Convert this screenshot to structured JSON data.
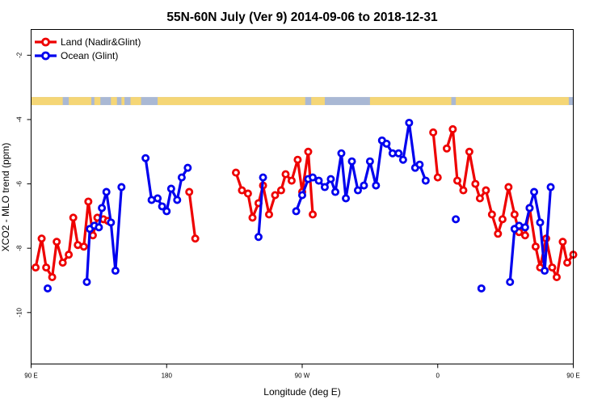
{
  "chart_data": {
    "type": "line",
    "title": "55N-60N July (Ver 9)   2014-09-06 to 2018-12-31",
    "xlabel": "Longitude (deg E)",
    "ylabel": "XCO2 - MLO trend (ppm)",
    "xlim": [
      90,
      450
    ],
    "ylim": [
      -11.6,
      -1.2
    ],
    "x_ticks": [
      {
        "value": 90,
        "label": "90 E"
      },
      {
        "value": 180,
        "label": "180"
      },
      {
        "value": 270,
        "label": "90 W"
      },
      {
        "value": 360,
        "label": "0"
      },
      {
        "value": 450,
        "label": "90 E"
      },
      {
        "value": 540,
        "label": "180"
      }
    ],
    "y_ticks": [
      {
        "value": -2,
        "label": "-2"
      },
      {
        "value": -4,
        "label": "-4"
      },
      {
        "value": -6,
        "label": "-6"
      },
      {
        "value": -8,
        "label": "-8"
      },
      {
        "value": -10,
        "label": "-10"
      }
    ],
    "legend_position": "top-left",
    "land_mask": {
      "y_range": [
        -3.55,
        -3.3
      ],
      "ocean_color": "#a9b8d4",
      "land_color": "#f5d676",
      "land_segments": [
        [
          90,
          111
        ],
        [
          115,
          130
        ],
        [
          132,
          136
        ],
        [
          143,
          147
        ],
        [
          150,
          152
        ],
        [
          156,
          163
        ],
        [
          174,
          272
        ],
        [
          276,
          285
        ],
        [
          315,
          369
        ],
        [
          372,
          447
        ]
      ]
    },
    "series": [
      {
        "name": "Land (Nadir&Glint)",
        "color": "#ee0000",
        "segments": [
          [
            [
              93,
              -8.6
            ],
            [
              97,
              -7.7
            ],
            [
              100,
              -8.6
            ],
            [
              104,
              -8.9
            ],
            [
              107,
              -7.8
            ],
            [
              111,
              -8.45
            ],
            [
              115,
              -8.2
            ],
            [
              118,
              -7.05
            ],
            [
              121,
              -7.9
            ],
            [
              125,
              -7.95
            ],
            [
              128,
              -6.55
            ],
            [
              131,
              -7.6
            ],
            [
              134,
              -7.05
            ],
            [
              138,
              -7.1
            ],
            [
              141,
              -7.15
            ]
          ],
          [
            [
              195,
              -6.25
            ],
            [
              199,
              -7.7
            ]
          ],
          [
            [
              226,
              -5.65
            ],
            [
              230,
              -6.2
            ],
            [
              234,
              -6.3
            ],
            [
              237,
              -7.05
            ],
            [
              241,
              -6.6
            ],
            [
              244,
              -6.05
            ],
            [
              248,
              -6.95
            ],
            [
              252,
              -6.35
            ],
            [
              256,
              -6.2
            ],
            [
              259,
              -5.7
            ],
            [
              263,
              -5.9
            ],
            [
              267,
              -5.25
            ],
            [
              270,
              -6.25
            ],
            [
              274,
              -5.0
            ],
            [
              277,
              -6.95
            ]
          ],
          [
            [
              357,
              -4.4
            ],
            [
              360,
              -5.8
            ]
          ],
          [
            [
              366,
              -4.9
            ],
            [
              370,
              -4.3
            ],
            [
              373,
              -5.9
            ],
            [
              377,
              -6.2
            ],
            [
              381,
              -5.0
            ],
            [
              385,
              -6.0
            ],
            [
              388,
              -6.45
            ],
            [
              392,
              -6.2
            ],
            [
              396,
              -6.95
            ],
            [
              400,
              -7.55
            ],
            [
              403,
              -7.1
            ],
            [
              407,
              -6.1
            ],
            [
              411,
              -6.95
            ],
            [
              414,
              -7.5
            ],
            [
              418,
              -7.6
            ],
            [
              421,
              -6.75
            ],
            [
              425,
              -7.95
            ],
            [
              428,
              -8.6
            ],
            [
              432,
              -7.7
            ],
            [
              436,
              -8.6
            ],
            [
              439,
              -8.9
            ],
            [
              443,
              -7.8
            ],
            [
              446,
              -8.45
            ],
            [
              450,
              -8.2
            ]
          ]
        ]
      },
      {
        "name": "Ocean (Glint)",
        "color": "#0000ee",
        "segments": [
          [
            [
              101,
              -9.25
            ]
          ],
          [
            [
              127,
              -9.05
            ],
            [
              129,
              -7.4
            ],
            [
              132,
              -7.3
            ],
            [
              135,
              -7.35
            ],
            [
              137,
              -6.75
            ],
            [
              140,
              -6.25
            ],
            [
              143,
              -7.2
            ],
            [
              146,
              -8.7
            ],
            [
              150,
              -6.1
            ]
          ],
          [
            [
              166,
              -5.2
            ],
            [
              170,
              -6.5
            ],
            [
              174,
              -6.45
            ],
            [
              177,
              -6.7
            ],
            [
              180,
              -6.85
            ],
            [
              183,
              -6.15
            ],
            [
              187,
              -6.5
            ],
            [
              190,
              -5.8
            ],
            [
              194,
              -5.5
            ]
          ],
          [
            [
              241,
              -7.65
            ],
            [
              244,
              -5.8
            ]
          ],
          [
            [
              266,
              -6.85
            ],
            [
              270,
              -6.35
            ],
            [
              274,
              -5.85
            ],
            [
              277,
              -5.8
            ],
            [
              281,
              -5.9
            ],
            [
              285,
              -6.1
            ],
            [
              289,
              -5.85
            ],
            [
              292,
              -6.25
            ],
            [
              296,
              -5.05
            ],
            [
              299,
              -6.45
            ],
            [
              303,
              -5.3
            ],
            [
              307,
              -6.2
            ],
            [
              311,
              -6.05
            ],
            [
              315,
              -5.3
            ],
            [
              319,
              -6.05
            ],
            [
              323,
              -4.65
            ],
            [
              326,
              -4.75
            ],
            [
              330,
              -5.05
            ],
            [
              334,
              -5.05
            ],
            [
              337,
              -5.25
            ],
            [
              341,
              -4.1
            ],
            [
              345,
              -5.5
            ],
            [
              348,
              -5.4
            ],
            [
              352,
              -5.9
            ]
          ],
          [
            [
              372,
              -7.1
            ]
          ],
          [
            [
              389,
              -9.25
            ]
          ],
          [
            [
              408,
              -9.05
            ],
            [
              411,
              -7.4
            ],
            [
              414,
              -7.3
            ],
            [
              418,
              -7.35
            ],
            [
              421,
              -6.75
            ],
            [
              424,
              -6.25
            ],
            [
              428,
              -7.2
            ],
            [
              431,
              -8.7
            ],
            [
              435,
              -6.1
            ]
          ]
        ]
      }
    ]
  }
}
